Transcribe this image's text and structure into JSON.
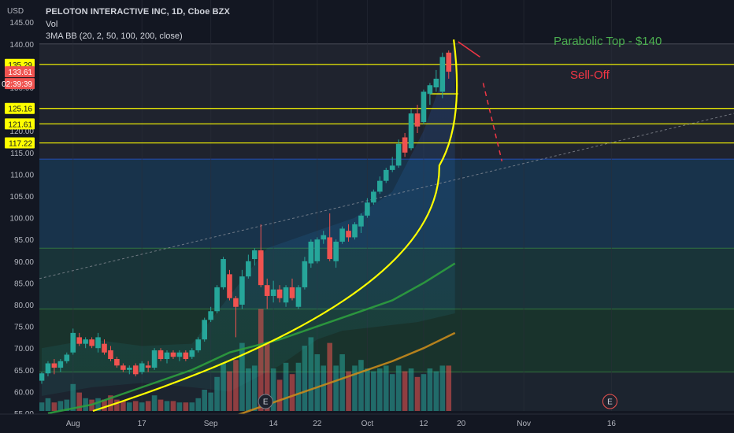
{
  "header": {
    "title": "PELOTON INTERACTIVE INC, 1D, Cboe BZX",
    "vol_label": "Vol",
    "indicator_label": "3MA BB (20, 2, 50, 100, 200, close)",
    "currency": "USD"
  },
  "colors": {
    "background": "#131722",
    "up": "#26a69a",
    "down": "#ef5350",
    "level_line": "#ffff00",
    "annotation_top": "#4caf50",
    "annotation_selloff": "#f23645"
  },
  "annotations": {
    "parabolic_top": "Parabolic Top - $140",
    "sell_off": "Sell-Off",
    "earnings_marker": "E"
  },
  "badges": {
    "countdown": "02:39:39"
  },
  "chart_data": {
    "type": "candlestick",
    "title": "PELOTON INTERACTIVE INC, 1D, Cboe BZX",
    "ylim": [
      54,
      145
    ],
    "y_ticks": [
      55,
      60,
      65,
      70,
      75,
      80,
      85,
      90,
      95,
      100,
      105,
      110,
      115,
      120,
      125,
      130,
      135,
      140,
      145
    ],
    "y_tick_labels": [
      "55.00",
      "60.00",
      "65.00",
      "70.00",
      "75.00",
      "80.00",
      "85.00",
      "90.00",
      "95.00",
      "100.00",
      "105.00",
      "110.00",
      "115.00",
      "120.00",
      "125.00",
      "130.00",
      "135.00",
      "140.00",
      "145.00"
    ],
    "x_ticks": [
      {
        "label": "Aug",
        "index": 5
      },
      {
        "label": "17",
        "index": 16
      },
      {
        "label": "Sep",
        "index": 27
      },
      {
        "label": "14",
        "index": 37
      },
      {
        "label": "22",
        "index": 44
      },
      {
        "label": "Oct",
        "index": 52
      },
      {
        "label": "12",
        "index": 61
      },
      {
        "label": "20",
        "index": 67
      },
      {
        "label": "Nov",
        "index": 77
      },
      {
        "label": "16",
        "index": 91
      }
    ],
    "price_levels": [
      {
        "value": 135.29,
        "label": "135.29"
      },
      {
        "value": 125.16,
        "label": "125.16"
      },
      {
        "value": 121.61,
        "label": "121.61"
      },
      {
        "value": 117.22,
        "label": "117.22"
      }
    ],
    "last_price": {
      "value": 133.61,
      "label": "133.61"
    },
    "candles": [
      {
        "o": 62.5,
        "h": 64.5,
        "l": 61.8,
        "c": 64.2
      },
      {
        "o": 64.2,
        "h": 67.0,
        "l": 63.5,
        "c": 66.5
      },
      {
        "o": 66.5,
        "h": 67.5,
        "l": 64.0,
        "c": 65.5
      },
      {
        "o": 65.5,
        "h": 67.5,
        "l": 64.5,
        "c": 67.0
      },
      {
        "o": 67.0,
        "h": 69.0,
        "l": 66.5,
        "c": 68.5
      },
      {
        "o": 69.0,
        "h": 74.5,
        "l": 68.5,
        "c": 73.5
      },
      {
        "o": 72.5,
        "h": 73.5,
        "l": 70.5,
        "c": 71.0
      },
      {
        "o": 71.0,
        "h": 72.5,
        "l": 70.0,
        "c": 72.0
      },
      {
        "o": 72.0,
        "h": 72.5,
        "l": 70.0,
        "c": 70.5
      },
      {
        "o": 70.0,
        "h": 73.5,
        "l": 69.0,
        "c": 72.5
      },
      {
        "o": 71.0,
        "h": 72.0,
        "l": 68.5,
        "c": 69.0
      },
      {
        "o": 69.5,
        "h": 70.5,
        "l": 67.0,
        "c": 67.5
      },
      {
        "o": 67.5,
        "h": 68.0,
        "l": 65.5,
        "c": 66.0
      },
      {
        "o": 66.0,
        "h": 66.5,
        "l": 64.5,
        "c": 65.0
      },
      {
        "o": 65.0,
        "h": 66.0,
        "l": 64.0,
        "c": 65.5
      },
      {
        "o": 66.0,
        "h": 66.5,
        "l": 63.5,
        "c": 64.0
      },
      {
        "o": 64.5,
        "h": 67.0,
        "l": 64.0,
        "c": 66.5
      },
      {
        "o": 66.0,
        "h": 67.0,
        "l": 64.5,
        "c": 65.5
      },
      {
        "o": 65.5,
        "h": 70.0,
        "l": 65.0,
        "c": 69.5
      },
      {
        "o": 69.5,
        "h": 70.0,
        "l": 67.0,
        "c": 67.5
      },
      {
        "o": 67.5,
        "h": 69.5,
        "l": 66.5,
        "c": 69.0
      },
      {
        "o": 69.0,
        "h": 69.5,
        "l": 67.5,
        "c": 68.0
      },
      {
        "o": 68.0,
        "h": 69.5,
        "l": 67.0,
        "c": 69.0
      },
      {
        "o": 69.0,
        "h": 69.5,
        "l": 67.0,
        "c": 67.5
      },
      {
        "o": 68.0,
        "h": 70.0,
        "l": 67.5,
        "c": 69.5
      },
      {
        "o": 69.5,
        "h": 72.5,
        "l": 69.0,
        "c": 72.0
      },
      {
        "o": 72.0,
        "h": 77.0,
        "l": 71.5,
        "c": 76.5
      },
      {
        "o": 76.5,
        "h": 79.5,
        "l": 76.0,
        "c": 78.5
      },
      {
        "o": 78.5,
        "h": 84.5,
        "l": 78.0,
        "c": 84.0
      },
      {
        "o": 84.0,
        "h": 91.0,
        "l": 83.5,
        "c": 90.5
      },
      {
        "o": 87.0,
        "h": 88.0,
        "l": 81.0,
        "c": 81.5
      },
      {
        "o": 81.5,
        "h": 82.0,
        "l": 72.5,
        "c": 79.5
      },
      {
        "o": 80.0,
        "h": 88.0,
        "l": 79.0,
        "c": 86.5
      },
      {
        "o": 86.5,
        "h": 91.5,
        "l": 86.0,
        "c": 90.0
      },
      {
        "o": 90.5,
        "h": 93.0,
        "l": 89.0,
        "c": 92.5
      },
      {
        "o": 92.5,
        "h": 98.5,
        "l": 84.0,
        "c": 84.5
      },
      {
        "o": 84.5,
        "h": 86.0,
        "l": 79.0,
        "c": 82.0
      },
      {
        "o": 82.0,
        "h": 85.5,
        "l": 80.5,
        "c": 83.5
      },
      {
        "o": 83.5,
        "h": 84.5,
        "l": 80.5,
        "c": 81.5
      },
      {
        "o": 80.5,
        "h": 84.5,
        "l": 79.5,
        "c": 84.0
      },
      {
        "o": 84.0,
        "h": 86.0,
        "l": 81.0,
        "c": 81.5
      },
      {
        "o": 79.5,
        "h": 84.5,
        "l": 79.0,
        "c": 84.0
      },
      {
        "o": 84.0,
        "h": 91.0,
        "l": 83.5,
        "c": 90.0
      },
      {
        "o": 89.5,
        "h": 95.0,
        "l": 88.5,
        "c": 94.5
      },
      {
        "o": 90.0,
        "h": 95.5,
        "l": 89.5,
        "c": 95.0
      },
      {
        "o": 95.0,
        "h": 97.0,
        "l": 94.0,
        "c": 96.0
      },
      {
        "o": 95.5,
        "h": 101.0,
        "l": 90.0,
        "c": 90.5
      },
      {
        "o": 90.0,
        "h": 95.0,
        "l": 88.5,
        "c": 94.5
      },
      {
        "o": 94.5,
        "h": 98.0,
        "l": 94.0,
        "c": 97.5
      },
      {
        "o": 97.0,
        "h": 98.5,
        "l": 94.5,
        "c": 95.5
      },
      {
        "o": 95.5,
        "h": 99.0,
        "l": 95.0,
        "c": 98.5
      },
      {
        "o": 98.0,
        "h": 101.0,
        "l": 96.5,
        "c": 100.5
      },
      {
        "o": 100.5,
        "h": 104.5,
        "l": 100.0,
        "c": 103.5
      },
      {
        "o": 103.5,
        "h": 106.5,
        "l": 103.0,
        "c": 106.0
      },
      {
        "o": 106.0,
        "h": 109.5,
        "l": 105.5,
        "c": 108.5
      },
      {
        "o": 108.5,
        "h": 111.5,
        "l": 108.0,
        "c": 111.0
      },
      {
        "o": 111.0,
        "h": 114.0,
        "l": 110.5,
        "c": 112.0
      },
      {
        "o": 112.0,
        "h": 118.0,
        "l": 111.5,
        "c": 117.0
      },
      {
        "o": 118.5,
        "h": 119.5,
        "l": 114.0,
        "c": 115.0
      },
      {
        "o": 116.0,
        "h": 125.0,
        "l": 115.5,
        "c": 124.0
      },
      {
        "o": 124.0,
        "h": 126.0,
        "l": 119.5,
        "c": 121.0
      },
      {
        "o": 122.0,
        "h": 129.5,
        "l": 121.5,
        "c": 129.0
      },
      {
        "o": 128.5,
        "h": 131.0,
        "l": 126.0,
        "c": 130.5
      },
      {
        "o": 130.0,
        "h": 134.0,
        "l": 129.0,
        "c": 132.0
      },
      {
        "o": 129.0,
        "h": 138.0,
        "l": 127.5,
        "c": 137.0
      },
      {
        "o": 138.0,
        "h": 138.5,
        "l": 132.0,
        "c": 133.61
      }
    ],
    "volume": [
      {
        "v": 0.3,
        "up": true
      },
      {
        "v": 0.45,
        "up": true
      },
      {
        "v": 0.3,
        "up": false
      },
      {
        "v": 0.35,
        "up": true
      },
      {
        "v": 0.4,
        "up": true
      },
      {
        "v": 0.95,
        "up": true
      },
      {
        "v": 0.65,
        "up": false
      },
      {
        "v": 0.45,
        "up": true
      },
      {
        "v": 0.4,
        "up": false
      },
      {
        "v": 0.45,
        "up": true
      },
      {
        "v": 0.4,
        "up": false
      },
      {
        "v": 0.55,
        "up": false
      },
      {
        "v": 0.4,
        "up": false
      },
      {
        "v": 0.35,
        "up": false
      },
      {
        "v": 0.3,
        "up": true
      },
      {
        "v": 0.35,
        "up": false
      },
      {
        "v": 0.3,
        "up": true
      },
      {
        "v": 0.35,
        "up": false
      },
      {
        "v": 0.55,
        "up": true
      },
      {
        "v": 0.4,
        "up": false
      },
      {
        "v": 0.35,
        "up": true
      },
      {
        "v": 0.35,
        "up": false
      },
      {
        "v": 0.3,
        "up": true
      },
      {
        "v": 0.3,
        "up": false
      },
      {
        "v": 0.3,
        "up": true
      },
      {
        "v": 0.45,
        "up": true
      },
      {
        "v": 0.75,
        "up": true
      },
      {
        "v": 0.65,
        "up": true
      },
      {
        "v": 1.2,
        "up": true
      },
      {
        "v": 1.7,
        "up": true
      },
      {
        "v": 1.4,
        "up": false
      },
      {
        "v": 1.8,
        "up": false
      },
      {
        "v": 2.4,
        "up": true
      },
      {
        "v": 1.5,
        "up": true
      },
      {
        "v": 1.6,
        "up": true
      },
      {
        "v": 3.6,
        "up": false
      },
      {
        "v": 2.4,
        "up": false
      },
      {
        "v": 1.5,
        "up": true
      },
      {
        "v": 1.1,
        "up": false
      },
      {
        "v": 1.7,
        "up": true
      },
      {
        "v": 1.3,
        "up": false
      },
      {
        "v": 1.7,
        "up": true
      },
      {
        "v": 2.3,
        "up": true
      },
      {
        "v": 2.6,
        "up": true
      },
      {
        "v": 2.0,
        "up": true
      },
      {
        "v": 1.6,
        "up": true
      },
      {
        "v": 2.4,
        "up": false
      },
      {
        "v": 1.6,
        "up": true
      },
      {
        "v": 2.0,
        "up": true
      },
      {
        "v": 1.4,
        "up": false
      },
      {
        "v": 1.6,
        "up": true
      },
      {
        "v": 1.8,
        "up": true
      },
      {
        "v": 1.5,
        "up": true
      },
      {
        "v": 1.4,
        "up": true
      },
      {
        "v": 1.5,
        "up": true
      },
      {
        "v": 1.6,
        "up": true
      },
      {
        "v": 1.3,
        "up": true
      },
      {
        "v": 1.6,
        "up": true
      },
      {
        "v": 1.4,
        "up": false
      },
      {
        "v": 1.5,
        "up": true
      },
      {
        "v": 1.2,
        "up": false
      },
      {
        "v": 1.3,
        "up": true
      },
      {
        "v": 1.5,
        "up": true
      },
      {
        "v": 1.4,
        "up": true
      },
      {
        "v": 1.6,
        "up": true
      },
      {
        "v": 1.6,
        "up": false
      }
    ],
    "earnings_markers": [
      36,
      91
    ],
    "ma_series": [
      {
        "name": "50",
        "points": [
          [
            1,
            55
          ],
          [
            8,
            57
          ],
          [
            16,
            61
          ],
          [
            24,
            65
          ],
          [
            30,
            69
          ],
          [
            38,
            72
          ],
          [
            44,
            75
          ],
          [
            50,
            78
          ],
          [
            56,
            81
          ],
          [
            61,
            85
          ],
          [
            66,
            89.5
          ]
        ]
      },
      {
        "name": "100",
        "points": [
          [
            30,
            54
          ],
          [
            38,
            58
          ],
          [
            44,
            61
          ],
          [
            50,
            64
          ],
          [
            56,
            67
          ],
          [
            61,
            70
          ],
          [
            66,
            73.5
          ]
        ]
      }
    ],
    "zones": [
      {
        "from": 113.5,
        "to": 140,
        "color": "#2a2e39"
      },
      {
        "from": 93,
        "to": 113.5,
        "color": "#1e4a6e"
      },
      {
        "from": 79,
        "to": 93,
        "color": "#1f4d4d"
      },
      {
        "from": 64.5,
        "to": 79,
        "color": "#1f4a35"
      },
      {
        "from": 54,
        "to": 64.5,
        "color": "#24303a"
      }
    ]
  }
}
